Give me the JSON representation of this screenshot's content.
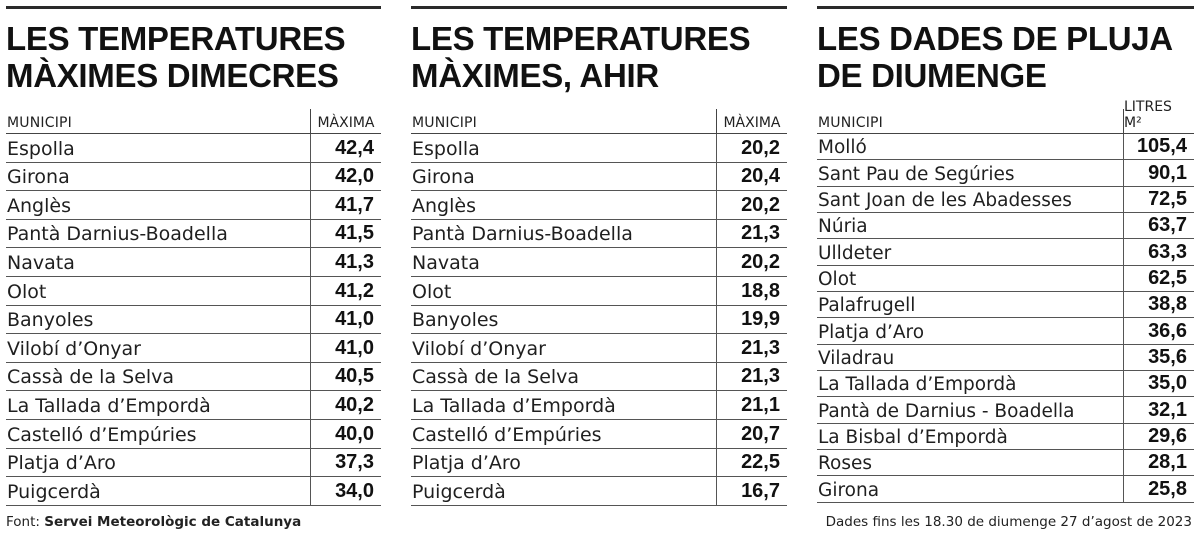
{
  "panels": [
    {
      "title_line1": "LES TEMPERATURES",
      "title_line2": "MÀXIMES DIMECRES",
      "col_city": "MUNICIPI",
      "col_value": "MÀXIMA",
      "rows": [
        {
          "city": "Espolla",
          "value": "42,4"
        },
        {
          "city": "Girona",
          "value": "42,0"
        },
        {
          "city": "Anglès",
          "value": "41,7"
        },
        {
          "city": "Pantà Darnius-Boadella",
          "value": "41,5"
        },
        {
          "city": "Navata",
          "value": "41,3"
        },
        {
          "city": "Olot",
          "value": "41,2"
        },
        {
          "city": "Banyoles",
          "value": "41,0"
        },
        {
          "city": "Vilobí d’Onyar",
          "value": "41,0"
        },
        {
          "city": "Cassà de la Selva",
          "value": "40,5"
        },
        {
          "city": "La Tallada d’Empordà",
          "value": "40,2"
        },
        {
          "city": "Castelló d’Empúries",
          "value": "40,0"
        },
        {
          "city": "Platja d’Aro",
          "value": "37,3"
        },
        {
          "city": "Puigcerdà",
          "value": "34,0"
        }
      ]
    },
    {
      "title_line1": "LES TEMPERATURES",
      "title_line2": "MÀXIMES, AHIR",
      "col_city": "MUNICIPI",
      "col_value": "MÀXIMA",
      "rows": [
        {
          "city": "Espolla",
          "value": "20,2"
        },
        {
          "city": "Girona",
          "value": "20,4"
        },
        {
          "city": "Anglès",
          "value": "20,2"
        },
        {
          "city": "Pantà Darnius-Boadella",
          "value": "21,3"
        },
        {
          "city": "Navata",
          "value": "20,2"
        },
        {
          "city": "Olot",
          "value": "18,8"
        },
        {
          "city": "Banyoles",
          "value": "19,9"
        },
        {
          "city": "Vilobí d’Onyar",
          "value": "21,3"
        },
        {
          "city": "Cassà de la Selva",
          "value": "21,3"
        },
        {
          "city": "La Tallada d’Empordà",
          "value": "21,1"
        },
        {
          "city": "Castelló d’Empúries",
          "value": "20,7"
        },
        {
          "city": "Platja d’Aro",
          "value": "22,5"
        },
        {
          "city": "Puigcerdà",
          "value": "16,7"
        }
      ]
    },
    {
      "title_line1": "LES DADES DE PLUJA",
      "title_line2": "DE DIUMENGE",
      "col_city": "MUNICIPI",
      "col_value": "LITRES M²",
      "rows": [
        {
          "city": "Molló",
          "value": "105,4"
        },
        {
          "city": "Sant Pau de Segúries",
          "value": "90,1"
        },
        {
          "city": "Sant Joan de les Abadesses",
          "value": "72,5"
        },
        {
          "city": "Núria",
          "value": "63,7"
        },
        {
          "city": "Ulldeter",
          "value": "63,3"
        },
        {
          "city": "Olot",
          "value": "62,5"
        },
        {
          "city": "Palafrugell",
          "value": "38,8"
        },
        {
          "city": "Platja d’Aro",
          "value": "36,6"
        },
        {
          "city": "Viladrau",
          "value": "35,6"
        },
        {
          "city": "La Tallada d’Empordà",
          "value": "35,0"
        },
        {
          "city": "Pantà de Darnius - Boadella",
          "value": "32,1"
        },
        {
          "city": "La Bisbal d’Empordà",
          "value": "29,6"
        },
        {
          "city": "Roses",
          "value": "28,1"
        },
        {
          "city": "Girona",
          "value": "25,8"
        }
      ]
    }
  ],
  "footer": {
    "source_label": "Font: ",
    "source_name": "Servei Meteorològic de Catalunya",
    "note": "Dades  fins les 18.30 de diumenge 27 d’agost de 2023"
  }
}
